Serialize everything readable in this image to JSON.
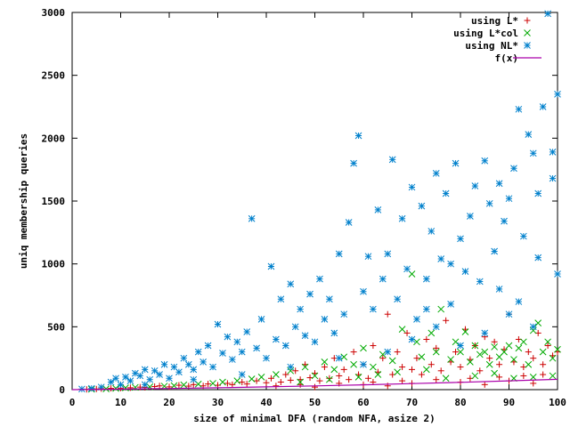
{
  "chart_data": {
    "type": "scatter",
    "xlabel": "size of minimal DFA (random NFA, asize 2)",
    "ylabel": "uniq membership queries",
    "xlim": [
      0,
      100
    ],
    "ylim": [
      0,
      3000
    ],
    "xticks": [
      0,
      10,
      20,
      30,
      40,
      50,
      60,
      70,
      80,
      90,
      100
    ],
    "yticks": [
      0,
      500,
      1000,
      1500,
      2000,
      2500,
      3000
    ],
    "legend_position": "top-right",
    "grid": false,
    "series": [
      {
        "name": "using L*",
        "marker": "plus",
        "color": "#cc0000",
        "points": [
          [
            3,
            2
          ],
          [
            5,
            5
          ],
          [
            6,
            8
          ],
          [
            8,
            10
          ],
          [
            10,
            12
          ],
          [
            12,
            15
          ],
          [
            14,
            20
          ],
          [
            15,
            18
          ],
          [
            17,
            25
          ],
          [
            18,
            30
          ],
          [
            20,
            22
          ],
          [
            22,
            35
          ],
          [
            24,
            28
          ],
          [
            25,
            40
          ],
          [
            27,
            30
          ],
          [
            28,
            45
          ],
          [
            30,
            35
          ],
          [
            32,
            50
          ],
          [
            33,
            40
          ],
          [
            35,
            60
          ],
          [
            36,
            45
          ],
          [
            38,
            70
          ],
          [
            40,
            55
          ],
          [
            41,
            90
          ],
          [
            43,
            60
          ],
          [
            44,
            120
          ],
          [
            45,
            75
          ],
          [
            46,
            150
          ],
          [
            47,
            80
          ],
          [
            48,
            200
          ],
          [
            49,
            95
          ],
          [
            50,
            130
          ],
          [
            51,
            70
          ],
          [
            52,
            180
          ],
          [
            53,
            90
          ],
          [
            54,
            250
          ],
          [
            55,
            110
          ],
          [
            56,
            160
          ],
          [
            57,
            80
          ],
          [
            58,
            300
          ],
          [
            59,
            120
          ],
          [
            60,
            200
          ],
          [
            61,
            90
          ],
          [
            62,
            350
          ],
          [
            63,
            140
          ],
          [
            64,
            250
          ],
          [
            65,
            600
          ],
          [
            66,
            120
          ],
          [
            67,
            300
          ],
          [
            68,
            180
          ],
          [
            69,
            450
          ],
          [
            70,
            160
          ],
          [
            71,
            250
          ],
          [
            72,
            120
          ],
          [
            73,
            400
          ],
          [
            74,
            200
          ],
          [
            75,
            330
          ],
          [
            76,
            150
          ],
          [
            77,
            550
          ],
          [
            78,
            220
          ],
          [
            79,
            300
          ],
          [
            80,
            180
          ],
          [
            81,
            480
          ],
          [
            82,
            240
          ],
          [
            83,
            350
          ],
          [
            84,
            150
          ],
          [
            85,
            420
          ],
          [
            86,
            250
          ],
          [
            87,
            380
          ],
          [
            88,
            200
          ],
          [
            89,
            320
          ],
          [
            90,
            600
          ],
          [
            91,
            220
          ],
          [
            92,
            400
          ],
          [
            93,
            180
          ],
          [
            94,
            300
          ],
          [
            95,
            250
          ],
          [
            96,
            450
          ],
          [
            97,
            200
          ],
          [
            98,
            350
          ],
          [
            99,
            270
          ],
          [
            100,
            300
          ],
          [
            42,
            30
          ],
          [
            47,
            40
          ],
          [
            55,
            50
          ],
          [
            62,
            60
          ],
          [
            68,
            70
          ],
          [
            75,
            80
          ],
          [
            82,
            90
          ],
          [
            88,
            100
          ],
          [
            93,
            110
          ],
          [
            97,
            120
          ],
          [
            60,
            40
          ],
          [
            70,
            50
          ],
          [
            80,
            60
          ],
          [
            90,
            70
          ],
          [
            50,
            20
          ],
          [
            65,
            30
          ],
          [
            85,
            40
          ],
          [
            95,
            50
          ]
        ]
      },
      {
        "name": "using L*col",
        "marker": "cross",
        "color": "#00aa00",
        "points": [
          [
            4,
            3
          ],
          [
            7,
            6
          ],
          [
            9,
            10
          ],
          [
            11,
            14
          ],
          [
            13,
            18
          ],
          [
            16,
            22
          ],
          [
            19,
            28
          ],
          [
            21,
            32
          ],
          [
            23,
            38
          ],
          [
            26,
            44
          ],
          [
            29,
            50
          ],
          [
            31,
            60
          ],
          [
            34,
            70
          ],
          [
            37,
            85
          ],
          [
            39,
            100
          ],
          [
            42,
            120
          ],
          [
            45,
            150
          ],
          [
            48,
            180
          ],
          [
            50,
            110
          ],
          [
            52,
            220
          ],
          [
            54,
            160
          ],
          [
            56,
            260
          ],
          [
            58,
            200
          ],
          [
            60,
            330
          ],
          [
            62,
            180
          ],
          [
            64,
            280
          ],
          [
            66,
            230
          ],
          [
            68,
            480
          ],
          [
            70,
            920
          ],
          [
            71,
            380
          ],
          [
            72,
            260
          ],
          [
            74,
            450
          ],
          [
            75,
            300
          ],
          [
            76,
            640
          ],
          [
            78,
            240
          ],
          [
            79,
            380
          ],
          [
            80,
            300
          ],
          [
            81,
            460
          ],
          [
            82,
            220
          ],
          [
            83,
            350
          ],
          [
            84,
            280
          ],
          [
            85,
            300
          ],
          [
            86,
            200
          ],
          [
            87,
            340
          ],
          [
            88,
            260
          ],
          [
            89,
            300
          ],
          [
            90,
            350
          ],
          [
            91,
            240
          ],
          [
            92,
            330
          ],
          [
            93,
            380
          ],
          [
            94,
            200
          ],
          [
            95,
            470
          ],
          [
            96,
            530
          ],
          [
            97,
            300
          ],
          [
            98,
            380
          ],
          [
            99,
            250
          ],
          [
            100,
            320
          ],
          [
            47,
            60
          ],
          [
            53,
            80
          ],
          [
            59,
            100
          ],
          [
            63,
            120
          ],
          [
            67,
            140
          ],
          [
            73,
            160
          ],
          [
            77,
            90
          ],
          [
            83,
            110
          ],
          [
            87,
            130
          ],
          [
            91,
            90
          ],
          [
            95,
            100
          ],
          [
            99,
            110
          ]
        ]
      },
      {
        "name": "using NL*",
        "marker": "star",
        "color": "#0080cc",
        "points": [
          [
            2,
            5
          ],
          [
            4,
            10
          ],
          [
            6,
            20
          ],
          [
            8,
            60
          ],
          [
            9,
            90
          ],
          [
            10,
            40
          ],
          [
            11,
            100
          ],
          [
            12,
            70
          ],
          [
            13,
            130
          ],
          [
            14,
            110
          ],
          [
            15,
            160
          ],
          [
            16,
            80
          ],
          [
            17,
            150
          ],
          [
            18,
            120
          ],
          [
            19,
            200
          ],
          [
            20,
            90
          ],
          [
            21,
            180
          ],
          [
            22,
            140
          ],
          [
            23,
            250
          ],
          [
            24,
            200
          ],
          [
            25,
            160
          ],
          [
            26,
            300
          ],
          [
            27,
            220
          ],
          [
            28,
            350
          ],
          [
            29,
            180
          ],
          [
            30,
            520
          ],
          [
            31,
            290
          ],
          [
            32,
            420
          ],
          [
            33,
            240
          ],
          [
            34,
            380
          ],
          [
            35,
            300
          ],
          [
            36,
            460
          ],
          [
            37,
            1360
          ],
          [
            38,
            330
          ],
          [
            39,
            560
          ],
          [
            40,
            250
          ],
          [
            41,
            980
          ],
          [
            42,
            400
          ],
          [
            43,
            720
          ],
          [
            44,
            350
          ],
          [
            45,
            840
          ],
          [
            46,
            500
          ],
          [
            47,
            640
          ],
          [
            48,
            430
          ],
          [
            49,
            760
          ],
          [
            50,
            380
          ],
          [
            51,
            880
          ],
          [
            52,
            560
          ],
          [
            53,
            720
          ],
          [
            54,
            450
          ],
          [
            55,
            1080
          ],
          [
            56,
            600
          ],
          [
            57,
            1330
          ],
          [
            58,
            1800
          ],
          [
            59,
            2020
          ],
          [
            60,
            780
          ],
          [
            61,
            1060
          ],
          [
            62,
            640
          ],
          [
            63,
            1430
          ],
          [
            64,
            880
          ],
          [
            65,
            1080
          ],
          [
            66,
            1830
          ],
          [
            67,
            720
          ],
          [
            68,
            1360
          ],
          [
            69,
            960
          ],
          [
            70,
            1610
          ],
          [
            71,
            560
          ],
          [
            72,
            1460
          ],
          [
            73,
            880
          ],
          [
            74,
            1260
          ],
          [
            75,
            1720
          ],
          [
            76,
            1040
          ],
          [
            77,
            1560
          ],
          [
            78,
            680
          ],
          [
            79,
            1800
          ],
          [
            80,
            1200
          ],
          [
            81,
            940
          ],
          [
            82,
            1380
          ],
          [
            83,
            1620
          ],
          [
            84,
            860
          ],
          [
            85,
            1820
          ],
          [
            86,
            1480
          ],
          [
            87,
            1100
          ],
          [
            88,
            1640
          ],
          [
            89,
            1340
          ],
          [
            90,
            1520
          ],
          [
            91,
            1760
          ],
          [
            92,
            2230
          ],
          [
            93,
            1220
          ],
          [
            94,
            2030
          ],
          [
            95,
            1880
          ],
          [
            96,
            1560
          ],
          [
            97,
            2250
          ],
          [
            98,
            2990
          ],
          [
            99,
            1680
          ],
          [
            100,
            2350
          ],
          [
            60,
            200
          ],
          [
            65,
            300
          ],
          [
            70,
            400
          ],
          [
            75,
            500
          ],
          [
            80,
            350
          ],
          [
            85,
            450
          ],
          [
            90,
            600
          ],
          [
            95,
            500
          ],
          [
            100,
            920
          ],
          [
            55,
            250
          ],
          [
            45,
            180
          ],
          [
            35,
            120
          ],
          [
            25,
            80
          ],
          [
            15,
            40
          ],
          [
            88,
            800
          ],
          [
            92,
            700
          ],
          [
            96,
            1050
          ],
          [
            99,
            1890
          ],
          [
            78,
            1000
          ],
          [
            73,
            640
          ]
        ]
      },
      {
        "name": "f(x)",
        "marker": "line",
        "color": "#aa00aa",
        "points": [
          [
            0,
            0
          ],
          [
            10,
            4
          ],
          [
            20,
            9
          ],
          [
            30,
            15
          ],
          [
            40,
            22
          ],
          [
            50,
            30
          ],
          [
            60,
            38
          ],
          [
            70,
            48
          ],
          [
            80,
            58
          ],
          [
            90,
            70
          ],
          [
            100,
            82
          ]
        ]
      }
    ]
  }
}
